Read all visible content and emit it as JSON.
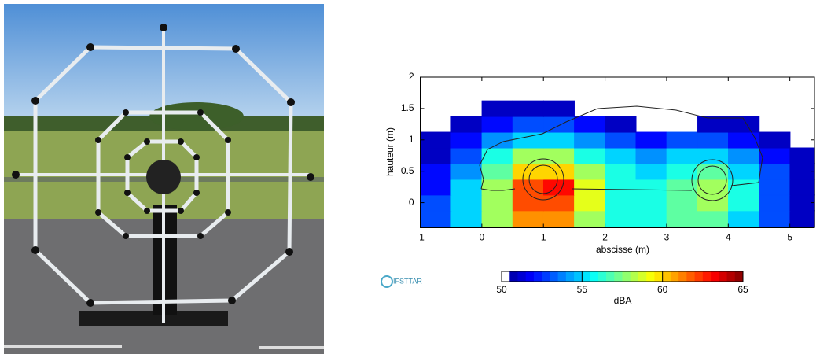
{
  "chart_data": {
    "type": "heatmap",
    "x_label": "abscisse (m)",
    "y_label": "hauteur (m)",
    "xlim": [
      -1,
      5.4
    ],
    "ylim": [
      -0.4,
      2
    ],
    "xticks": [
      -1,
      0,
      1,
      2,
      3,
      4,
      5
    ],
    "yticks": [
      0,
      0.5,
      1,
      1.5,
      2
    ],
    "x": [
      -0.75,
      -0.25,
      0.25,
      0.75,
      1.25,
      1.75,
      2.25,
      2.75,
      3.25,
      3.75,
      4.25,
      4.75,
      5.25
    ],
    "y": [
      -0.25,
      0,
      0.25,
      0.5,
      0.75,
      1,
      1.25,
      1.5
    ],
    "values": [
      [
        53,
        55,
        58,
        61,
        61,
        58,
        56,
        56,
        57,
        57,
        55,
        53,
        51
      ],
      [
        53,
        55,
        58,
        62,
        62,
        59,
        56,
        56,
        57,
        58,
        56,
        53,
        51
      ],
      [
        52,
        55,
        58,
        62,
        63,
        59,
        56,
        56,
        57,
        58,
        56,
        53,
        51
      ],
      [
        52,
        54,
        57,
        60,
        60,
        58,
        56,
        55,
        56,
        57,
        55,
        53,
        51
      ],
      [
        51,
        53,
        56,
        58,
        58,
        56,
        55,
        54,
        55,
        55,
        54,
        52,
        51
      ],
      [
        51,
        52,
        54,
        55,
        55,
        54,
        53,
        52,
        53,
        53,
        52,
        51,
        null
      ],
      [
        null,
        51,
        52,
        53,
        53,
        52,
        51,
        null,
        null,
        51,
        51,
        null,
        null
      ],
      [
        null,
        null,
        51,
        51,
        51,
        null,
        null,
        null,
        null,
        null,
        null,
        null,
        null
      ]
    ],
    "colorbar": {
      "label": "dBA",
      "lim": [
        50,
        65
      ],
      "ticks": [
        50,
        55,
        60,
        65
      ]
    }
  },
  "logo": "IFSTTAR"
}
